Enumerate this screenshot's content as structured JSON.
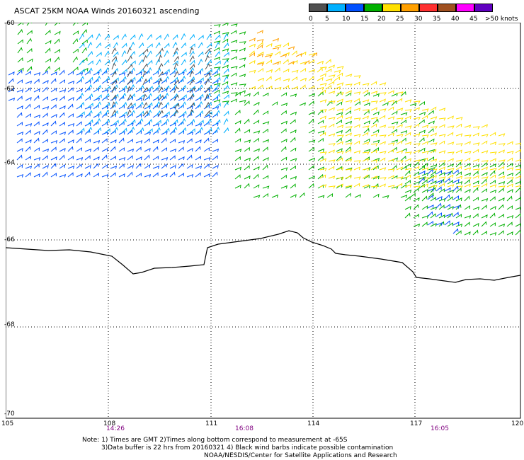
{
  "title": "ASCAT 25KM NOAA Winds 20160321 ascending",
  "legend": {
    "colors": [
      "#505050",
      "#00b0ff",
      "#0050ff",
      "#00b000",
      "#ffe000",
      "#ffa000",
      "#ff3030",
      "#a05020",
      "#ff00ff",
      "#6000c0"
    ],
    "labels": [
      "0",
      "5",
      "10",
      "15",
      "20",
      "25",
      "30",
      "35",
      "40",
      "45",
      ">50 knots"
    ]
  },
  "lat_labels": [
    "-60",
    "-62",
    "-64",
    "-66",
    "-68",
    "-70"
  ],
  "lon_labels": [
    "105",
    "108",
    "111",
    "114",
    "117",
    "120"
  ],
  "time_labels": [
    "14:26",
    "16:08",
    "16:05"
  ],
  "notes": {
    "line1": "Note: 1) Times are GMT 2)Times along bottom correspond to measurement at -65S",
    "line2": "3)Data buffer is 22 hrs from 20160321 4) Black wind barbs indicate possible contamination",
    "line3": "NOAA/NESDIS/Center for Satellite Applications and Research"
  },
  "wind_regions": [
    {
      "color_index": 3,
      "label": "north-west swath edge"
    },
    {
      "color_index": 1,
      "label": "west swath"
    },
    {
      "color_index": 0,
      "label": "contaminated barbs"
    },
    {
      "color_index": 4,
      "label": "east swath"
    },
    {
      "color_index": 5,
      "label": "north-east swath"
    },
    {
      "color_index": 2,
      "label": "southern fringe"
    }
  ]
}
